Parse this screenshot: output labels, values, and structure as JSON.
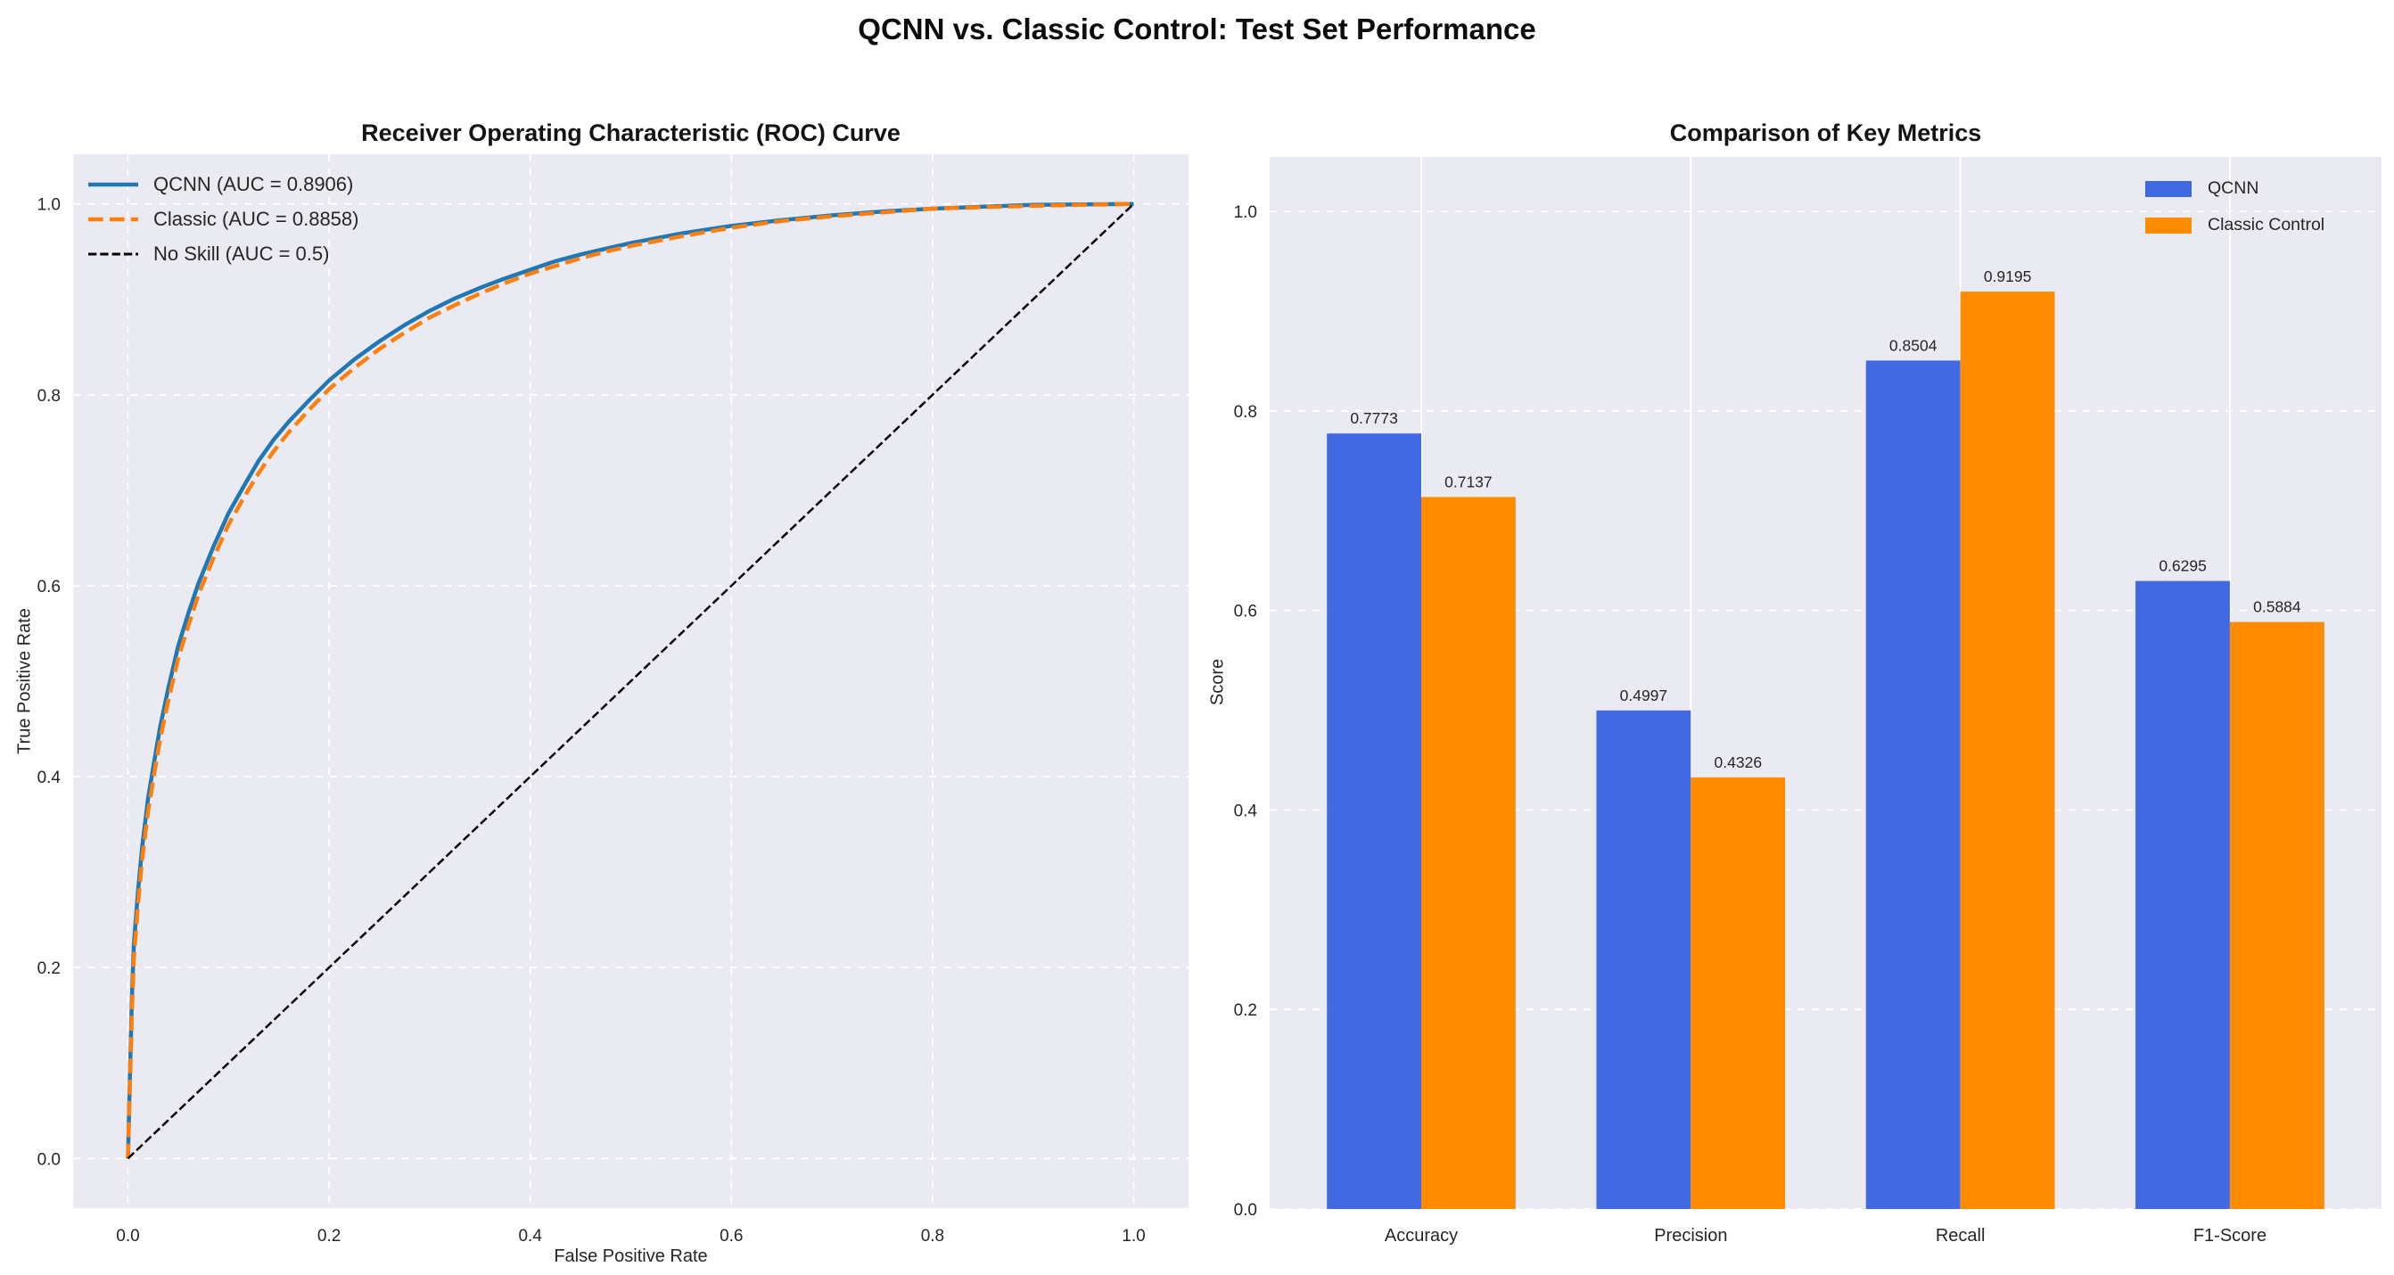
{
  "figure": {
    "suptitle": "QCNN vs. Classic Control: Test Set Performance",
    "background": "#ffffff",
    "axes_background": "#eaeaf2",
    "grid_color": "#ffffff",
    "text_color": "#262626"
  },
  "chart_data": [
    {
      "type": "line",
      "title": "Receiver Operating Characteristic (ROC) Curve",
      "xlabel": "False Positive Rate",
      "ylabel": "True Positive Rate",
      "xlim": [
        -0.0545,
        1.0545
      ],
      "ylim": [
        -0.052,
        1.052
      ],
      "xticks": [
        0.0,
        0.2,
        0.4,
        0.6,
        0.8,
        1.0
      ],
      "yticks": [
        0.0,
        0.2,
        0.4,
        0.6,
        0.8,
        1.0
      ],
      "grid": "dashed-both-axes",
      "legend_position": "upper-left",
      "series": [
        {
          "name": "QCNN (AUC = 0.8906)",
          "color": "#1f77b4",
          "style": "solid",
          "width": 4.5,
          "points": [
            [
              0,
              0
            ],
            [
              0.002,
              0.085
            ],
            [
              0.004,
              0.17
            ],
            [
              0.006,
              0.225
            ],
            [
              0.01,
              0.28
            ],
            [
              0.014,
              0.325
            ],
            [
              0.02,
              0.377
            ],
            [
              0.026,
              0.415
            ],
            [
              0.032,
              0.452
            ],
            [
              0.04,
              0.492
            ],
            [
              0.05,
              0.537
            ],
            [
              0.06,
              0.571
            ],
            [
              0.07,
              0.602
            ],
            [
              0.085,
              0.641
            ],
            [
              0.1,
              0.676
            ],
            [
              0.115,
              0.704
            ],
            [
              0.13,
              0.731
            ],
            [
              0.145,
              0.753
            ],
            [
              0.16,
              0.772
            ],
            [
              0.18,
              0.794
            ],
            [
              0.2,
              0.815
            ],
            [
              0.225,
              0.837
            ],
            [
              0.25,
              0.856
            ],
            [
              0.275,
              0.873
            ],
            [
              0.3,
              0.888
            ],
            [
              0.325,
              0.901
            ],
            [
              0.35,
              0.912
            ],
            [
              0.375,
              0.922
            ],
            [
              0.4,
              0.931
            ],
            [
              0.425,
              0.94
            ],
            [
              0.45,
              0.947
            ],
            [
              0.475,
              0.953
            ],
            [
              0.5,
              0.959
            ],
            [
              0.55,
              0.969
            ],
            [
              0.6,
              0.977
            ],
            [
              0.65,
              0.983
            ],
            [
              0.7,
              0.988
            ],
            [
              0.75,
              0.992
            ],
            [
              0.8,
              0.995
            ],
            [
              0.9,
              0.999
            ],
            [
              1,
              1
            ]
          ]
        },
        {
          "name": "Classic (AUC = 0.8858)",
          "color": "#ff7f0e",
          "style": "dashed",
          "width": 4.5,
          "points": [
            [
              0,
              0
            ],
            [
              0.002,
              0.075
            ],
            [
              0.004,
              0.155
            ],
            [
              0.006,
              0.21
            ],
            [
              0.01,
              0.266
            ],
            [
              0.014,
              0.312
            ],
            [
              0.02,
              0.363
            ],
            [
              0.026,
              0.402
            ],
            [
              0.032,
              0.439
            ],
            [
              0.04,
              0.479
            ],
            [
              0.05,
              0.524
            ],
            [
              0.06,
              0.558
            ],
            [
              0.07,
              0.59
            ],
            [
              0.085,
              0.629
            ],
            [
              0.1,
              0.664
            ],
            [
              0.115,
              0.692
            ],
            [
              0.13,
              0.718
            ],
            [
              0.145,
              0.741
            ],
            [
              0.16,
              0.761
            ],
            [
              0.18,
              0.784
            ],
            [
              0.2,
              0.806
            ],
            [
              0.225,
              0.828
            ],
            [
              0.25,
              0.848
            ],
            [
              0.275,
              0.865
            ],
            [
              0.3,
              0.881
            ],
            [
              0.325,
              0.894
            ],
            [
              0.35,
              0.906
            ],
            [
              0.375,
              0.917
            ],
            [
              0.4,
              0.927
            ],
            [
              0.425,
              0.935
            ],
            [
              0.45,
              0.943
            ],
            [
              0.475,
              0.95
            ],
            [
              0.5,
              0.956
            ],
            [
              0.55,
              0.966
            ],
            [
              0.6,
              0.975
            ],
            [
              0.65,
              0.982
            ],
            [
              0.7,
              0.987
            ],
            [
              0.75,
              0.991
            ],
            [
              0.8,
              0.995
            ],
            [
              0.9,
              0.998
            ],
            [
              1,
              1
            ]
          ]
        },
        {
          "name": "No Skill (AUC = 0.5)",
          "color": "#000000",
          "style": "dashed",
          "width": 2.5,
          "points": [
            [
              0,
              0
            ],
            [
              1,
              1
            ]
          ]
        }
      ]
    },
    {
      "type": "bar",
      "title": "Comparison of Key Metrics",
      "xlabel": "",
      "ylabel": "Score",
      "categories": [
        "Accuracy",
        "Precision",
        "Recall",
        "F1-Score"
      ],
      "yticks": [
        0.0,
        0.2,
        0.4,
        0.6,
        0.8,
        1.0
      ],
      "ylim": [
        0,
        1.0545
      ],
      "grid": "h-dashed-v-solid",
      "legend_position": "upper-right",
      "series": [
        {
          "name": "QCNN",
          "color": "#4169e1",
          "values": [
            0.7773,
            0.4997,
            0.8504,
            0.6295
          ]
        },
        {
          "name": "Classic Control",
          "color": "#ff8c00",
          "values": [
            0.7137,
            0.4326,
            0.9195,
            0.5884
          ]
        }
      ],
      "bar_labels": [
        [
          "0.7773",
          "0.4997",
          "0.8504",
          "0.6295"
        ],
        [
          "0.7137",
          "0.4326",
          "0.9195",
          "0.5884"
        ]
      ]
    }
  ]
}
